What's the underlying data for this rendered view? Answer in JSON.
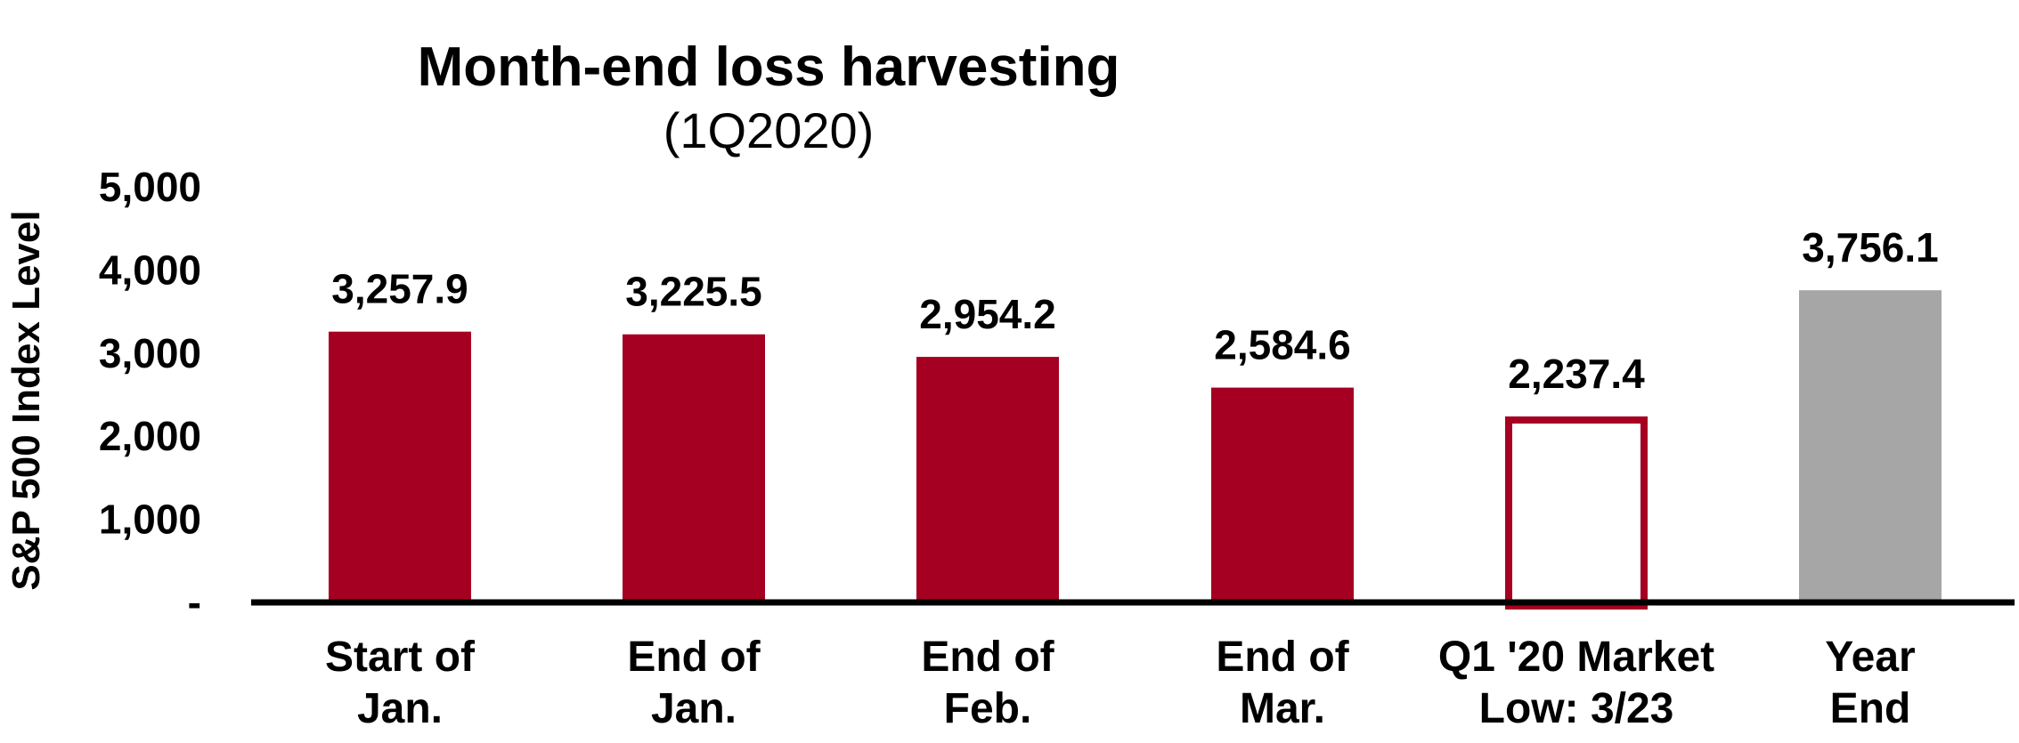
{
  "chart_data": {
    "type": "bar",
    "title": "Month-end loss harvesting",
    "subtitle": "(1Q2020)",
    "ylabel": "S&P 500 Index Level",
    "xlabel": "",
    "ylim": [
      0,
      5000
    ],
    "yticks": [
      {
        "value": 0,
        "label": "-"
      },
      {
        "value": 1000,
        "label": "1,000"
      },
      {
        "value": 2000,
        "label": "2,000"
      },
      {
        "value": 3000,
        "label": "3,000"
      },
      {
        "value": 4000,
        "label": "4,000"
      },
      {
        "value": 5000,
        "label": "5,000"
      }
    ],
    "grid": false,
    "categories": [
      {
        "line1": "Start of",
        "line2": "Jan."
      },
      {
        "line1": "End of",
        "line2": "Jan."
      },
      {
        "line1": "End of",
        "line2": "Feb."
      },
      {
        "line1": "End of",
        "line2": "Mar."
      },
      {
        "line1": "Q1 '20 Market",
        "line2": "Low: 3/23"
      },
      {
        "line1": "Year",
        "line2": "End"
      }
    ],
    "values": [
      3257.9,
      3225.5,
      2954.2,
      2584.6,
      2237.4,
      3756.1
    ],
    "value_labels": [
      "3,257.9",
      "3,225.5",
      "2,954.2",
      "2,584.6",
      "2,237.4",
      "3,756.1"
    ],
    "bar_styles": [
      "filled",
      "filled",
      "filled",
      "filled",
      "outline",
      "filled"
    ],
    "bar_colors": [
      "#a50021",
      "#a50021",
      "#a50021",
      "#a50021",
      "#a50021",
      "#a6a6a6"
    ]
  }
}
